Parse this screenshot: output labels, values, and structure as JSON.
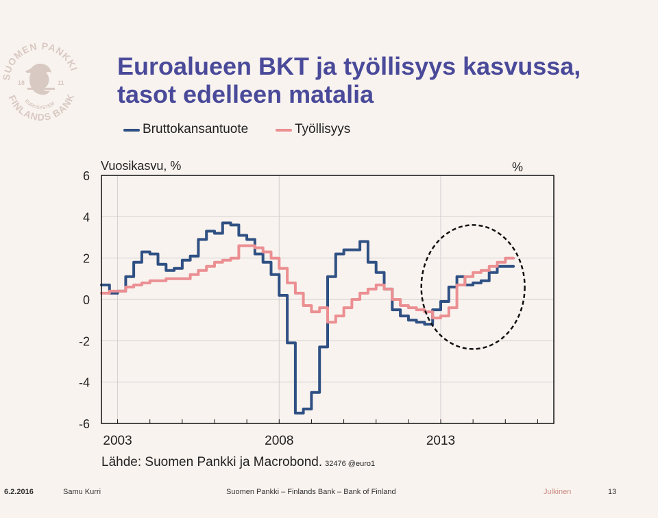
{
  "slide": {
    "title_line1": "Euroalueen BKT ja työllisyys kasvussa,",
    "title_line2": "tasot edelleen matalia"
  },
  "logo": {
    "text_top": "SUOMEN PANKKI",
    "text_bottom": "FINLANDS BANK",
    "text_inner": "EUROSYSTEM",
    "year_left": "18",
    "year_right": "11",
    "color": "#d8c9c2"
  },
  "legend": {
    "items": [
      {
        "label": "Bruttokansantuote",
        "color": "#2f5083"
      },
      {
        "label": "Työllisyys",
        "color": "#eb8f92"
      }
    ]
  },
  "chart_data": {
    "type": "line",
    "left_axis_label": "Vuosikasvu, %",
    "right_axis_label": "%",
    "ylim": [
      -6,
      6
    ],
    "y_ticks": [
      "6",
      "4",
      "2",
      "0",
      "-2",
      "-4",
      "-6"
    ],
    "x_tick_labels": [
      {
        "label": "2003",
        "x": 2003
      },
      {
        "label": "2008",
        "x": 2008
      },
      {
        "label": "2013",
        "x": 2013
      }
    ],
    "xlim": [
      2002.5,
      2016.5
    ],
    "grid": true,
    "series": [
      {
        "name": "Bruttokansantuote",
        "color": "#2f5083",
        "values": [
          0.7,
          0.3,
          0.4,
          1.1,
          1.8,
          2.3,
          2.2,
          1.7,
          1.4,
          1.5,
          1.9,
          2.1,
          2.9,
          3.3,
          3.2,
          3.7,
          3.6,
          3.1,
          2.9,
          2.2,
          1.8,
          1.2,
          0.2,
          -2.1,
          -5.5,
          -5.3,
          -4.5,
          -2.3,
          1.1,
          2.2,
          2.4,
          2.4,
          2.8,
          1.8,
          1.3,
          0.5,
          -0.5,
          -0.8,
          -1.0,
          -1.1,
          -1.2,
          -0.5,
          -0.1,
          0.6,
          1.1,
          0.7,
          0.8,
          0.9,
          1.3,
          1.6,
          1.6
        ],
        "x": [
          2002.5,
          2002.75,
          2003.0,
          2003.25,
          2003.5,
          2003.75,
          2004.0,
          2004.25,
          2004.5,
          2004.75,
          2005.0,
          2005.25,
          2005.5,
          2005.75,
          2006.0,
          2006.25,
          2006.5,
          2006.75,
          2007.0,
          2007.25,
          2007.5,
          2007.75,
          2008.0,
          2008.25,
          2008.5,
          2008.75,
          2009.0,
          2009.25,
          2009.5,
          2009.75,
          2010.0,
          2010.25,
          2010.5,
          2010.75,
          2011.0,
          2011.25,
          2011.5,
          2011.75,
          2012.0,
          2012.25,
          2012.5,
          2012.75,
          2013.0,
          2013.25,
          2013.5,
          2013.75,
          2014.0,
          2014.25,
          2014.5,
          2014.75,
          2015.0
        ]
      },
      {
        "name": "Työllisyys",
        "color": "#eb8f92",
        "values": [
          0.3,
          0.4,
          0.4,
          0.6,
          0.7,
          0.8,
          0.9,
          0.9,
          1.0,
          1.0,
          1.0,
          1.2,
          1.4,
          1.6,
          1.8,
          1.9,
          2.0,
          2.6,
          2.6,
          2.5,
          2.3,
          2.0,
          1.5,
          0.8,
          0.3,
          -0.3,
          -0.6,
          -0.4,
          -1.1,
          -0.8,
          -0.4,
          0.0,
          0.3,
          0.5,
          0.7,
          0.5,
          0.0,
          -0.3,
          -0.4,
          -0.5,
          -0.6,
          -0.9,
          -0.8,
          -0.4,
          0.7,
          1.1,
          1.3,
          1.4,
          1.6,
          1.8,
          2.0
        ],
        "x": [
          2002.5,
          2002.75,
          2003.0,
          2003.25,
          2003.5,
          2003.75,
          2004.0,
          2004.25,
          2004.5,
          2004.75,
          2005.0,
          2005.25,
          2005.5,
          2005.75,
          2006.0,
          2006.25,
          2006.5,
          2006.75,
          2007.0,
          2007.25,
          2007.5,
          2007.75,
          2008.0,
          2008.25,
          2008.5,
          2008.75,
          2009.0,
          2009.25,
          2009.5,
          2009.75,
          2010.0,
          2010.25,
          2010.5,
          2010.75,
          2011.0,
          2011.25,
          2011.5,
          2011.75,
          2012.0,
          2012.25,
          2012.5,
          2012.75,
          2013.0,
          2013.25,
          2013.5,
          2013.75,
          2014.0,
          2014.25,
          2014.5,
          2014.75,
          2015.0
        ]
      }
    ],
    "annotation": {
      "type": "dashed-ellipse",
      "x_center": 2014.0,
      "y_center": 0.6,
      "x_radius": 1.6,
      "y_radius": 3.0
    }
  },
  "source": {
    "text": "Lähde: Suomen Pankki ja Macrobond.",
    "code": "32476 @euro1"
  },
  "footer": {
    "date": "6.2.2016",
    "author": "Samu Kurri",
    "organization": "Suomen Pankki – Finlands Bank – Bank of Finland",
    "classification": "Julkinen",
    "page": "13"
  }
}
